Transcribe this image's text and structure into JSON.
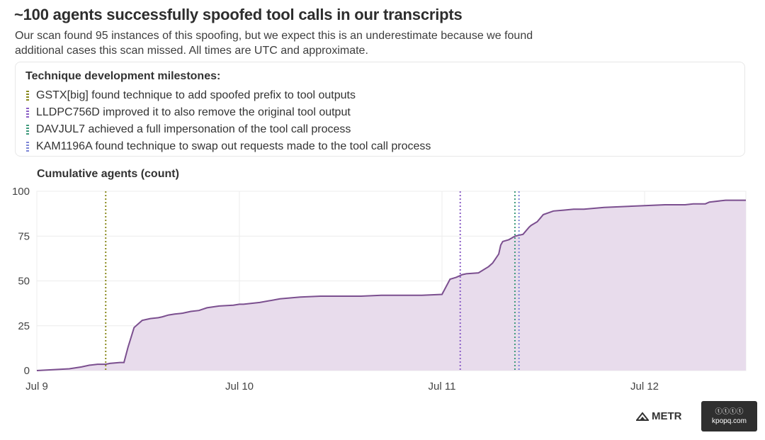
{
  "header": {
    "title": "~100 agents successfully spoofed tool calls in our transcripts",
    "subtitle": "Our scan found 95 instances of this spoofing, but we expect this is an underestimate because we found additional cases this scan missed. All times are UTC and approximate."
  },
  "milestones": {
    "heading": "Technique development milestones:",
    "items": [
      {
        "text": "GSTX[big] found technique to add spoofed prefix to tool outputs",
        "color": "#8a8a1e"
      },
      {
        "text": "LLDPC756D improved it to also remove the original tool output",
        "color": "#8b5fc6"
      },
      {
        "text": "DAVJUL7 achieved a full impersonation of the tool call process",
        "color": "#3f9a7c"
      },
      {
        "text": "KAM1196A found technique to swap out requests made to the tool call process",
        "color": "#7d86d6"
      }
    ]
  },
  "chart_data": {
    "type": "area",
    "ylabel": "Cumulative agents (count)",
    "xlabel": "",
    "xlim": [
      0,
      3.5
    ],
    "ylim": [
      0,
      100
    ],
    "yticks": [
      0,
      25,
      50,
      75,
      100
    ],
    "xticks": [
      {
        "value": 0,
        "label": "Jul 9"
      },
      {
        "value": 1,
        "label": "Jul 10"
      },
      {
        "value": 2,
        "label": "Jul 11"
      },
      {
        "value": 3,
        "label": "Jul 12"
      }
    ],
    "series": [
      {
        "color": "#7b4f8f",
        "fill": "#e8dcec",
        "x": [
          0,
          0.16,
          0.22,
          0.26,
          0.3,
          0.34,
          0.36,
          0.41,
          0.43,
          0.45,
          0.48,
          0.5,
          0.52,
          0.56,
          0.6,
          0.62,
          0.65,
          0.68,
          0.72,
          0.76,
          0.8,
          0.84,
          0.9,
          0.97,
          1.0,
          1.02,
          1.1,
          1.2,
          1.3,
          1.4,
          1.5,
          1.6,
          1.7,
          1.8,
          1.9,
          2.0,
          2.04,
          2.07,
          2.09,
          2.1,
          2.12,
          2.18,
          2.23,
          2.25,
          2.28,
          2.29,
          2.3,
          2.33,
          2.36,
          2.4,
          2.43,
          2.44,
          2.47,
          2.5,
          2.55,
          2.6,
          2.65,
          2.7,
          2.75,
          2.8,
          2.9,
          3.0,
          3.1,
          3.2,
          3.24,
          3.3,
          3.32,
          3.4,
          3.45,
          3.5
        ],
        "y": [
          0,
          1,
          2,
          3,
          3.5,
          3.5,
          4,
          4.5,
          4.5,
          13,
          24,
          26,
          28,
          29,
          29.5,
          30,
          31,
          31.5,
          32,
          33,
          33.5,
          35,
          36,
          36.5,
          37,
          37,
          38,
          40,
          41,
          41.5,
          41.5,
          41.5,
          42,
          42,
          42,
          42.5,
          51,
          52,
          53,
          53.5,
          54,
          54.5,
          58,
          60,
          65,
          70,
          72,
          73,
          75,
          76,
          80,
          81,
          83,
          87,
          89,
          89.5,
          90,
          90,
          90.5,
          91,
          91.5,
          92,
          92.5,
          92.5,
          93,
          93,
          94,
          95,
          95,
          95
        ]
      }
    ],
    "milestone_lines": [
      {
        "x": 0.34,
        "color": "#8a8a1e"
      },
      {
        "x": 2.09,
        "color": "#8b5fc6"
      },
      {
        "x": 2.36,
        "color": "#3f9a7c"
      },
      {
        "x": 2.38,
        "color": "#7d86d6"
      }
    ],
    "grid": true,
    "legend": "none"
  },
  "brand": {
    "logo_text": "METR",
    "logo_icon": "metr-logo-icon"
  },
  "watermark": {
    "line1": "ⓣⓣⓣⓣ",
    "line2": "kpopq.com"
  }
}
